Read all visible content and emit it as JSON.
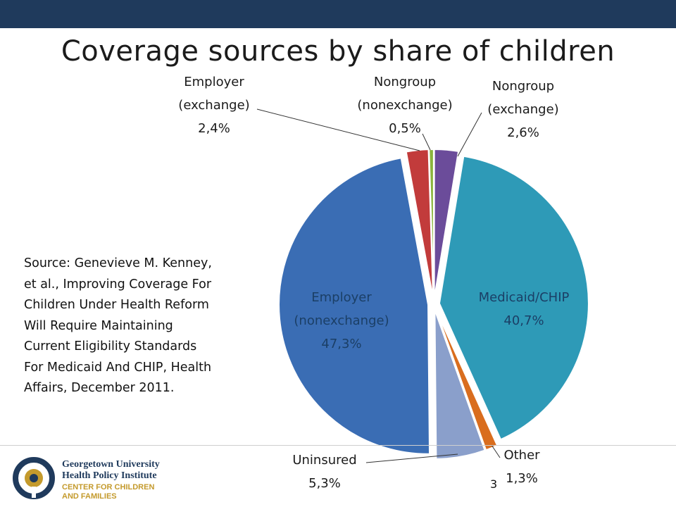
{
  "title": "Coverage sources by share of children",
  "source_note": "Source: Genevieve M. Kenney, et al., Improving Coverage For Children Under Health Reform Will Require Maintaining Current Eligibility Standards For Medicaid And CHIP, Health Affairs, December 2011.",
  "page_number": "3",
  "logo": {
    "line1": "Georgetown University",
    "line2": "Health Policy Institute",
    "line3": "CENTER FOR CHILDREN",
    "line4": "AND FAMILIES"
  },
  "colors": {
    "top_bar": "#1f3a5c",
    "logo_navy": "#1f3a5c",
    "logo_gold": "#c49a2c"
  },
  "chart_data": {
    "type": "pie",
    "title": "Coverage sources by share of children",
    "start_angle_deg": 0,
    "direction": "clockwise",
    "slices": [
      {
        "label": "Nongroup (exchange)",
        "lines": [
          "Nongroup",
          "(exchange)"
        ],
        "value": 2.6,
        "display": "2,6%",
        "color": "#6b4c9a",
        "label_position": "outside"
      },
      {
        "label": "Medicaid/CHIP",
        "lines": [
          "Medicaid/CHIP"
        ],
        "value": 40.7,
        "display": "40,7%",
        "color": "#2e9ab7",
        "label_position": "inside"
      },
      {
        "label": "Other",
        "lines": [
          "Other"
        ],
        "value": 1.3,
        "display": "1,3%",
        "color": "#d96d1e",
        "label_position": "outside"
      },
      {
        "label": "Uninsured",
        "lines": [
          "Uninsured"
        ],
        "value": 5.3,
        "display": "5,3%",
        "color": "#8a9fcb",
        "label_position": "outside"
      },
      {
        "label": "Employer (nonexchange)",
        "lines": [
          "Employer",
          "(nonexchange)"
        ],
        "value": 47.3,
        "display": "47,3%",
        "color": "#3a6db4",
        "label_position": "inside"
      },
      {
        "label": "Employer (exchange)",
        "lines": [
          "Employer",
          "(exchange)"
        ],
        "value": 2.4,
        "display": "2,4%",
        "color": "#c23b3b",
        "label_position": "outside"
      },
      {
        "label": "Nongroup (nonexchange)",
        "lines": [
          "Nongroup",
          "(nonexchange)"
        ],
        "value": 0.5,
        "display": "0,5%",
        "color": "#8ab43c",
        "label_position": "outside"
      }
    ]
  }
}
